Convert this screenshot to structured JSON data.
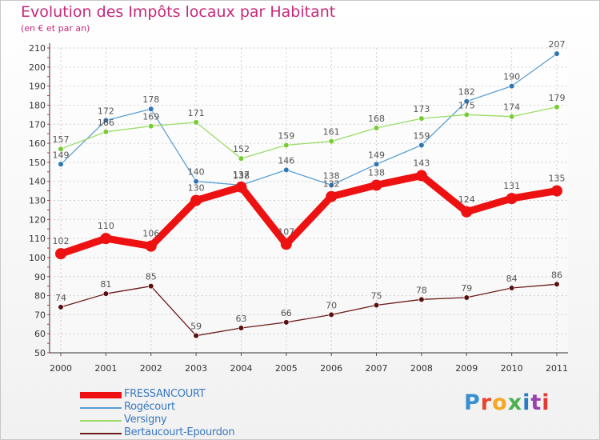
{
  "title": "Evolution des Impôts locaux par Habitant",
  "subtitle": "(en € et par an)",
  "logo": {
    "text": "Proxiti",
    "letter_colors": [
      "#3a8fd0",
      "#e8452c",
      "#f5a623",
      "#4caf50",
      "#2a7bc0",
      "#9a3fb0",
      "#e53935"
    ]
  },
  "chart_data": {
    "type": "line",
    "title": "Evolution des Impôts locaux par Habitant",
    "subtitle": "(en € et par an)",
    "xlabel": "",
    "ylabel": "",
    "x": [
      "2000",
      "2001",
      "2002",
      "2003",
      "2004",
      "2005",
      "2006",
      "2007",
      "2008",
      "2009",
      "2010",
      "2011"
    ],
    "ylim": [
      50,
      210
    ],
    "yticks": [
      50,
      60,
      70,
      80,
      90,
      100,
      110,
      120,
      130,
      140,
      150,
      160,
      170,
      180,
      190,
      200,
      210
    ],
    "grid": true,
    "legend_position": "bottom-left",
    "series": [
      {
        "name": "FRESSANCOURT",
        "color": "#ee1111",
        "marker_color": "#ee1111",
        "emphasis": true,
        "values": [
          102,
          110,
          106,
          130,
          137,
          107,
          132,
          138,
          143,
          124,
          131,
          135
        ],
        "labels": [
          "102",
          "110",
          "106",
          "130",
          "137",
          "107",
          "132",
          "138",
          "143",
          "124",
          "131",
          "135"
        ]
      },
      {
        "name": "Rogécourt",
        "color": "#5a9fd4",
        "marker_color": "#2e75b6",
        "emphasis": false,
        "values": [
          149,
          172,
          178,
          140,
          138,
          146,
          138,
          149,
          159,
          182,
          190,
          207
        ],
        "labels": [
          "149",
          "172",
          "178",
          "140",
          "138",
          "146",
          "138",
          "149",
          "159",
          "182",
          "190",
          "207"
        ]
      },
      {
        "name": "Versigny",
        "color": "#99dd66",
        "marker_color": "#77cc33",
        "emphasis": false,
        "values": [
          157,
          166,
          169,
          171,
          152,
          159,
          161,
          168,
          173,
          175,
          174,
          179
        ],
        "labels": [
          "157",
          "166",
          "169",
          "171",
          "152",
          "159",
          "161",
          "168",
          "173",
          "175",
          "174",
          "179"
        ]
      },
      {
        "name": "Bertaucourt-Epourdon",
        "color": "#6b1a1a",
        "marker_color": "#5a1010",
        "emphasis": false,
        "values": [
          74,
          81,
          85,
          59,
          63,
          66,
          70,
          75,
          78,
          79,
          84,
          86
        ],
        "labels": [
          "74",
          "81",
          "85",
          "59",
          "63",
          "66",
          "70",
          "75",
          "78",
          "79",
          "84",
          "86"
        ]
      }
    ]
  }
}
